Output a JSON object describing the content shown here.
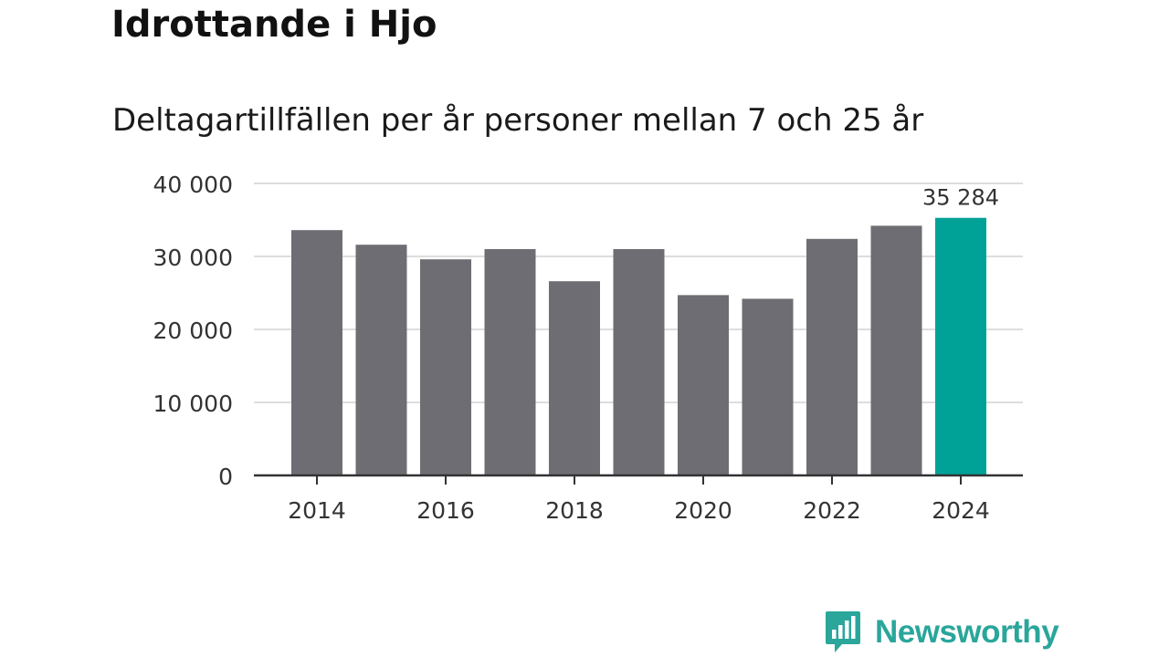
{
  "header": {
    "title": "Idrottande i Hjo",
    "subtitle": "Deltagartillfällen per år personer mellan 7 och 25 år"
  },
  "brand": {
    "name": "Newsworthy",
    "icon": "bar-chart-speech-bubble-icon",
    "color": "#2aa69b"
  },
  "chart_data": {
    "type": "bar",
    "title": "Deltagartillfällen per år personer mellan 7 och 25 år",
    "xlabel": "",
    "ylabel": "",
    "categories": [
      "2014",
      "2015",
      "2016",
      "2017",
      "2018",
      "2019",
      "2020",
      "2021",
      "2022",
      "2023",
      "2024"
    ],
    "values": [
      33600,
      31600,
      29600,
      31000,
      26600,
      31000,
      24700,
      24200,
      32400,
      34200,
      35284
    ],
    "ylim": [
      0,
      40000
    ],
    "yticks": [
      0,
      10000,
      20000,
      30000,
      40000
    ],
    "ytick_labels": [
      "0",
      "10 000",
      "20 000",
      "30 000",
      "40 000"
    ],
    "xtick_labels": [
      "2014",
      "2016",
      "2018",
      "2020",
      "2022",
      "2024"
    ],
    "highlight_index": 10,
    "highlight_label": "35 284",
    "bar_color": "#6e6d73",
    "highlight_color": "#00a298",
    "grid": true,
    "grid_color": "#dddddd",
    "axis_color": "#333333"
  }
}
